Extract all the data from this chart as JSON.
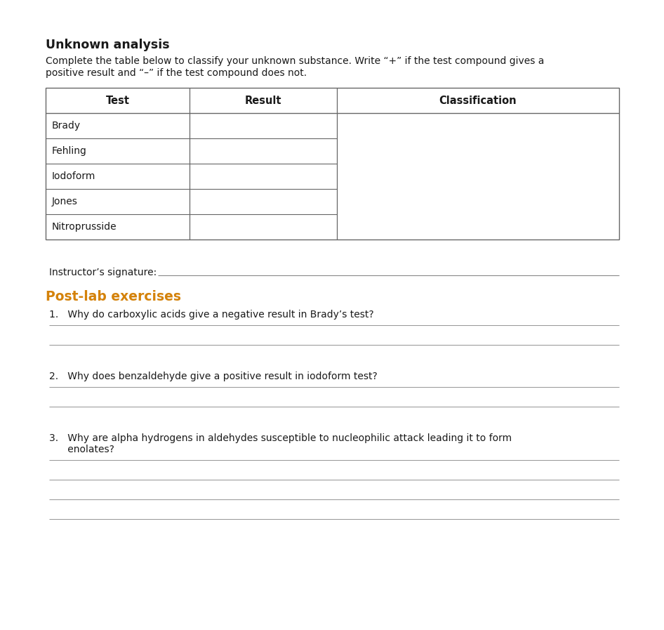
{
  "title": "Unknown analysis",
  "intro_text": "Complete the table below to classify your unknown substance. Write “+” if the test compound gives a\npositive result and “–” if the test compound does not.",
  "table_headers": [
    "Test",
    "Result",
    "Classification"
  ],
  "table_rows": [
    "Brady",
    "Fehling",
    "Iodoform",
    "Jones",
    "Nitroprusside"
  ],
  "instructor_label": "Instructor’s signature:",
  "postlab_heading": "Post-lab exercises",
  "postlab_color": "#D4820A",
  "q1": "1.   Why do carboxylic acids give a negative result in Brady’s test?",
  "q2": "2.   Why does benzaldehyde give a positive result in iodoform test?",
  "q3a": "3.   Why are alpha hydrogens in aldehydes susceptible to nucleophilic attack leading it to form",
  "q3b": "      enolates?",
  "answer_lines_q1": 2,
  "answer_lines_q2": 2,
  "answer_lines_q3": 4,
  "bg_color": "#ffffff",
  "text_color": "#1a1a1a",
  "line_color": "#aaaaaa",
  "table_border_color": "#666666",
  "title_fontsize": 12.5,
  "body_fontsize": 10.0,
  "header_fontsize": 10.5,
  "postlab_fontsize": 13.5
}
